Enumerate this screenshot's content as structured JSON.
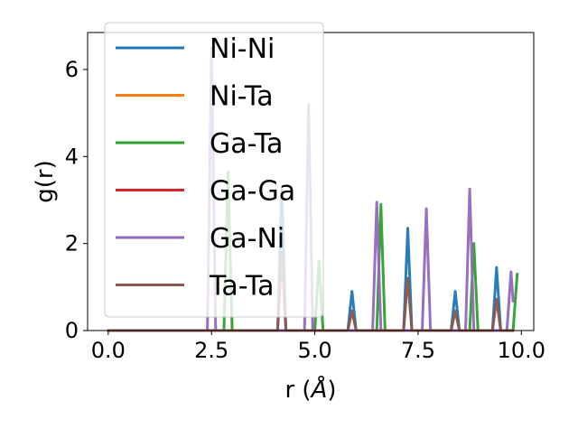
{
  "chart_data": {
    "type": "line",
    "xlabel": "r (",
    "xlabel_unit": "Å",
    "xlabel_close": ")",
    "ylabel": "g(r)",
    "xlim": [
      -0.5,
      10.3
    ],
    "ylim": [
      0,
      6.85
    ],
    "xticks": [
      0.0,
      2.5,
      5.0,
      7.5,
      10.0
    ],
    "xtick_labels": [
      "0.0",
      "2.5",
      "5.0",
      "7.5",
      "10.0"
    ],
    "yticks": [
      0,
      2,
      4,
      6
    ],
    "ytick_labels": [
      "0",
      "2",
      "4",
      "6"
    ],
    "grid": false,
    "legend_position": "upper-left",
    "series": [
      {
        "name": "Ni-Ni",
        "color": "#1f77b4",
        "peaks": [
          [
            4.2,
            3.25
          ],
          [
            5.9,
            0.9
          ],
          [
            7.25,
            2.35
          ],
          [
            8.4,
            0.9
          ],
          [
            9.4,
            1.45
          ]
        ],
        "points": []
      },
      {
        "name": "Ni-Ta",
        "color": "#ff7f0e",
        "peaks": [],
        "points": []
      },
      {
        "name": "Ga-Ta",
        "color": "#2ca02c",
        "peaks": [
          [
            2.9,
            3.65
          ],
          [
            5.1,
            1.6
          ],
          [
            6.6,
            2.9
          ],
          [
            8.85,
            2.0
          ]
        ],
        "points": [
          [
            9.8,
            0
          ],
          [
            9.9,
            1.3
          ]
        ]
      },
      {
        "name": "Ga-Ga",
        "color": "#d62728",
        "peaks": [],
        "points": []
      },
      {
        "name": "Ga-Ni",
        "color": "#9467bd",
        "peaks": [
          [
            2.5,
            6.5
          ],
          [
            4.85,
            5.2
          ],
          [
            6.5,
            2.95
          ],
          [
            7.7,
            2.8
          ],
          [
            8.75,
            3.25
          ],
          [
            9.75,
            1.35
          ]
        ],
        "points": []
      },
      {
        "name": "Ta-Ta",
        "color": "#8c564b",
        "peaks": [
          [
            4.2,
            1.8
          ],
          [
            5.9,
            0.45
          ],
          [
            7.25,
            1.2
          ],
          [
            8.4,
            0.45
          ],
          [
            9.4,
            0.72
          ]
        ],
        "points": []
      }
    ]
  }
}
